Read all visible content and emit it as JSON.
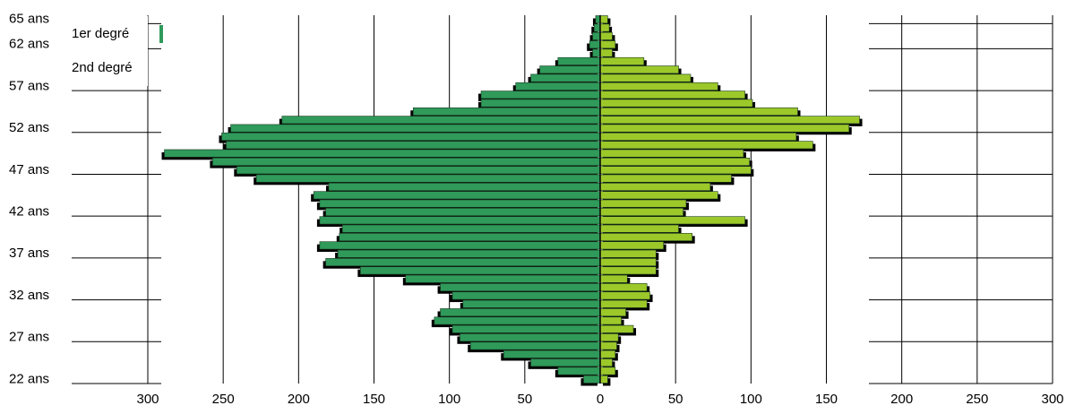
{
  "chart_data": {
    "type": "pyramid",
    "categories": [
      "65 ans",
      null,
      null,
      "62 ans",
      null,
      null,
      null,
      null,
      "57 ans",
      null,
      null,
      null,
      null,
      "52 ans",
      null,
      null,
      null,
      null,
      "47 ans",
      null,
      null,
      null,
      null,
      "42 ans",
      null,
      null,
      null,
      null,
      "37 ans",
      null,
      null,
      null,
      null,
      "32 ans",
      null,
      null,
      null,
      null,
      "27 ans",
      null,
      null,
      null,
      null,
      "22 ans"
    ],
    "series": [
      {
        "name": "1er degré",
        "color": "#2f9a5a",
        "side": "left",
        "values": [
          3,
          4,
          5,
          7,
          5,
          28,
          40,
          46,
          56,
          79,
          79,
          124,
          211,
          245,
          251,
          248,
          289,
          257,
          241,
          228,
          180,
          190,
          186,
          182,
          186,
          171,
          173,
          186,
          174,
          182,
          159,
          129,
          106,
          98,
          91,
          106,
          110,
          98,
          93,
          86,
          64,
          46,
          28,
          11
        ]
      },
      {
        "name": "2nd degré",
        "color": "#9cc82a",
        "side": "right",
        "values": [
          5,
          6,
          8,
          10,
          8,
          29,
          52,
          60,
          78,
          96,
          101,
          131,
          172,
          165,
          130,
          141,
          95,
          99,
          100,
          87,
          73,
          78,
          57,
          55,
          96,
          52,
          61,
          42,
          37,
          37,
          37,
          18,
          31,
          33,
          31,
          17,
          14,
          22,
          12,
          11,
          10,
          8,
          10,
          5
        ]
      }
    ],
    "xlim": [
      -300,
      300
    ],
    "xticks": [
      {
        "value": -300,
        "label": "300"
      },
      {
        "value": -250,
        "label": "250"
      },
      {
        "value": -200,
        "label": "200"
      },
      {
        "value": -150,
        "label": "150"
      },
      {
        "value": -100,
        "label": "100"
      },
      {
        "value": -50,
        "label": "50"
      },
      0,
      50,
      100,
      150,
      200,
      250,
      300
    ]
  }
}
